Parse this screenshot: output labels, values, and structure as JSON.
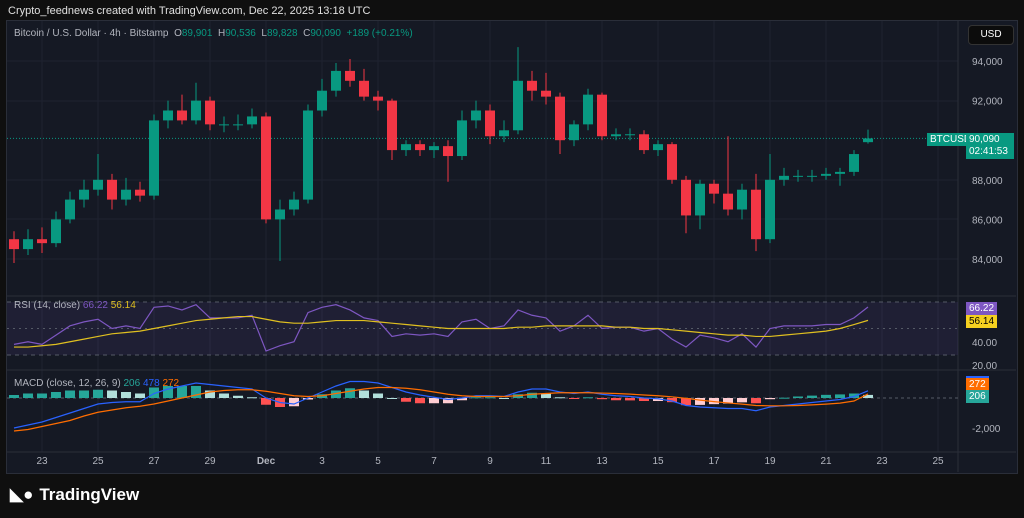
{
  "header": {
    "attribution": "Crypto_feednews created with TradingView.com, Dec 22, 2025 13:18 UTC"
  },
  "legend": {
    "symbol": "Bitcoin / U.S. Dollar · 4h · Bitstamp",
    "o_label": "O",
    "o": "89,901",
    "h_label": "H",
    "h": "90,536",
    "l_label": "L",
    "l": "89,828",
    "c_label": "C",
    "c": "90,090",
    "change": "+189 (+0.21%)"
  },
  "currency": "USD",
  "last_price": {
    "ticker": "BTCUSD",
    "price": "90,090",
    "countdown": "02:41:53"
  },
  "colors": {
    "up": "#089981",
    "down": "#f23645",
    "rsi": "#7e57c2",
    "rsi_ma": "#e0c020",
    "macd": "#2962ff",
    "signal": "#ff6d00",
    "bg": "#151924"
  },
  "rsi_legend": {
    "label": "RSI (14, close)",
    "value": "66.22",
    "ma": "56.14"
  },
  "macd_legend": {
    "label": "MACD (close, 12, 26, 9)",
    "hist": "206",
    "macd": "478",
    "signal": "272"
  },
  "brand": "TradingView",
  "chart_data": [
    {
      "type": "candlestick",
      "interval_shown": "4h",
      "price_ticks": [
        "94,000",
        "92,000",
        "88,000",
        "86,000",
        "84,000"
      ],
      "x_ticks": [
        "23",
        "25",
        "27",
        "29",
        "Dec",
        "3",
        "5",
        "7",
        "9",
        "11",
        "13",
        "15",
        "17",
        "19",
        "21",
        "23",
        "25"
      ],
      "candles": [
        [
          "2025-11-22 00:00",
          85000,
          85400,
          83800,
          84500
        ],
        [
          "2025-11-22 12:00",
          84500,
          85500,
          84200,
          85000
        ],
        [
          "2025-11-23 00:00",
          85000,
          85600,
          84300,
          84800
        ],
        [
          "2025-11-23 12:00",
          84800,
          86400,
          84600,
          86000
        ],
        [
          "2025-11-24 00:00",
          86000,
          87400,
          85800,
          87000
        ],
        [
          "2025-11-24 12:00",
          87000,
          88000,
          86600,
          87500
        ],
        [
          "2025-11-25 00:00",
          87500,
          89300,
          87200,
          88000
        ],
        [
          "2025-11-25 12:00",
          88000,
          88300,
          86500,
          87000
        ],
        [
          "2025-11-26 00:00",
          87000,
          88100,
          86700,
          87500
        ],
        [
          "2025-11-26 12:00",
          87500,
          87900,
          86900,
          87200
        ],
        [
          "2025-11-27 00:00",
          87200,
          91300,
          87000,
          91000
        ],
        [
          "2025-11-27 12:00",
          91000,
          92000,
          90600,
          91500
        ],
        [
          "2025-11-28 00:00",
          91500,
          92300,
          90800,
          91000
        ],
        [
          "2025-11-28 12:00",
          91000,
          92900,
          90800,
          92000
        ],
        [
          "2025-11-29 00:00",
          92000,
          92200,
          90500,
          90800
        ],
        [
          "2025-11-29 12:00",
          90800,
          91200,
          90400,
          90800
        ],
        [
          "2025-11-30 00:00",
          90800,
          91300,
          90500,
          90800
        ],
        [
          "2025-11-30 12:00",
          90800,
          91600,
          90600,
          91200
        ],
        [
          "2025-12-01 00:00",
          91200,
          91400,
          85800,
          86000
        ],
        [
          "2025-12-01 12:00",
          86000,
          87000,
          83900,
          86500
        ],
        [
          "2025-12-02 00:00",
          86500,
          87400,
          86200,
          87000
        ],
        [
          "2025-12-02 12:00",
          87000,
          91800,
          86800,
          91500
        ],
        [
          "2025-12-03 00:00",
          91500,
          93100,
          91200,
          92500
        ],
        [
          "2025-12-03 12:00",
          92500,
          93900,
          92200,
          93500
        ],
        [
          "2025-12-04 00:00",
          93500,
          94100,
          92700,
          93000
        ],
        [
          "2025-12-04 12:00",
          93000,
          93600,
          92000,
          92200
        ],
        [
          "2025-12-05 00:00",
          92200,
          92500,
          91500,
          92000
        ],
        [
          "2025-12-05 12:00",
          92000,
          92100,
          89000,
          89500
        ],
        [
          "2025-12-06 00:00",
          89500,
          90000,
          89200,
          89800
        ],
        [
          "2025-12-06 12:00",
          89800,
          90000,
          89200,
          89500
        ],
        [
          "2025-12-07 00:00",
          89500,
          89900,
          89100,
          89700
        ],
        [
          "2025-12-07 12:00",
          89700,
          90000,
          87900,
          89200
        ],
        [
          "2025-12-08 00:00",
          89200,
          91500,
          89000,
          91000
        ],
        [
          "2025-12-08 12:00",
          91000,
          92000,
          90600,
          91500
        ],
        [
          "2025-12-09 00:00",
          91500,
          91800,
          89800,
          90200
        ],
        [
          "2025-12-09 12:00",
          90200,
          91000,
          89900,
          90500
        ],
        [
          "2025-12-10 00:00",
          90500,
          94700,
          90300,
          93000
        ],
        [
          "2025-12-10 12:00",
          93000,
          93500,
          92000,
          92500
        ],
        [
          "2025-12-11 00:00",
          92500,
          93400,
          91800,
          92200
        ],
        [
          "2025-12-11 12:00",
          92200,
          92400,
          89300,
          90000
        ],
        [
          "2025-12-12 00:00",
          90000,
          91000,
          89700,
          90800
        ],
        [
          "2025-12-12 12:00",
          90800,
          92600,
          90500,
          92300
        ],
        [
          "2025-12-13 00:00",
          92300,
          92400,
          90000,
          90200
        ],
        [
          "2025-12-13 12:00",
          90200,
          90600,
          90000,
          90300
        ],
        [
          "2025-12-14 00:00",
          90300,
          90600,
          90000,
          90300
        ],
        [
          "2025-12-14 12:00",
          90300,
          90500,
          89300,
          89500
        ],
        [
          "2025-12-15 00:00",
          89500,
          90000,
          89200,
          89800
        ],
        [
          "2025-12-15 12:00",
          89800,
          89900,
          87800,
          88000
        ],
        [
          "2025-12-16 00:00",
          88000,
          88200,
          85300,
          86200
        ],
        [
          "2025-12-16 12:00",
          86200,
          88000,
          85500,
          87800
        ],
        [
          "2025-12-17 00:00",
          87800,
          88000,
          86800,
          87300
        ],
        [
          "2025-12-17 12:00",
          87300,
          90200,
          86200,
          86500
        ],
        [
          "2025-12-18 00:00",
          86500,
          87800,
          86000,
          87500
        ],
        [
          "2025-12-18 12:00",
          87500,
          88300,
          84400,
          85000
        ],
        [
          "2025-12-19 00:00",
          85000,
          89300,
          84800,
          88000
        ],
        [
          "2025-12-19 12:00",
          88000,
          88600,
          87700,
          88200
        ],
        [
          "2025-12-20 00:00",
          88200,
          88500,
          87900,
          88200
        ],
        [
          "2025-12-20 12:00",
          88200,
          88500,
          87900,
          88200
        ],
        [
          "2025-12-21 00:00",
          88200,
          88600,
          88000,
          88300
        ],
        [
          "2025-12-21 12:00",
          88300,
          88600,
          87700,
          88400
        ],
        [
          "2025-12-22 00:00",
          88400,
          89500,
          88200,
          89300
        ],
        [
          "2025-12-22 12:00",
          89901,
          90536,
          89828,
          90090
        ]
      ]
    },
    {
      "type": "line",
      "name": "RSI (14, close)",
      "y_ticks": [
        "40.00",
        "20.00"
      ],
      "bands": [
        70,
        30
      ],
      "rsi": [
        38,
        40,
        38,
        45,
        52,
        55,
        57,
        50,
        52,
        50,
        66,
        67,
        64,
        68,
        58,
        58,
        58,
        60,
        33,
        37,
        40,
        62,
        66,
        68,
        64,
        58,
        56,
        44,
        46,
        45,
        46,
        44,
        55,
        57,
        50,
        52,
        64,
        60,
        58,
        48,
        52,
        60,
        50,
        51,
        51,
        48,
        50,
        42,
        36,
        45,
        43,
        40,
        46,
        36,
        50,
        52,
        52,
        52,
        53,
        53,
        58,
        66.22
      ],
      "rsi_ma": [
        36,
        36,
        37,
        38,
        40,
        42,
        44,
        46,
        47,
        48,
        50,
        52,
        54,
        56,
        57,
        58,
        59,
        59,
        57,
        55,
        54,
        54,
        55,
        56,
        56,
        56,
        55,
        54,
        53,
        52,
        51,
        50,
        50,
        50,
        50,
        50,
        51,
        51,
        52,
        52,
        52,
        52,
        52,
        51,
        51,
        50,
        50,
        49,
        48,
        47,
        46,
        45,
        45,
        44,
        44,
        45,
        46,
        47,
        48,
        50,
        53,
        56.14
      ]
    },
    {
      "type": "line",
      "name": "MACD (close, 12, 26, 9)",
      "y_ticks": [
        "-2,000"
      ],
      "macd": [
        -2000,
        -1800,
        -1600,
        -1300,
        -1000,
        -700,
        -400,
        -300,
        -250,
        -250,
        300,
        600,
        800,
        1000,
        900,
        800,
        700,
        600,
        0,
        -300,
        -400,
        0,
        400,
        800,
        1100,
        1100,
        1000,
        700,
        400,
        200,
        50,
        -100,
        0,
        150,
        150,
        100,
        400,
        600,
        600,
        400,
        300,
        400,
        250,
        150,
        100,
        0,
        -50,
        -200,
        -500,
        -600,
        -650,
        -700,
        -700,
        -850,
        -600,
        -500,
        -400,
        -300,
        -200,
        -100,
        100,
        478
      ],
      "signal": [
        -2200,
        -2100,
        -1900,
        -1700,
        -1500,
        -1200,
        -950,
        -800,
        -650,
        -550,
        -400,
        -200,
        0,
        200,
        400,
        500,
        550,
        550,
        450,
        300,
        150,
        100,
        150,
        300,
        450,
        600,
        700,
        700,
        650,
        550,
        400,
        250,
        150,
        100,
        100,
        100,
        150,
        250,
        300,
        350,
        350,
        350,
        330,
        300,
        260,
        200,
        150,
        80,
        -20,
        -140,
        -240,
        -330,
        -410,
        -500,
        -520,
        -520,
        -500,
        -460,
        -410,
        -340,
        -200,
        272
      ]
    }
  ]
}
